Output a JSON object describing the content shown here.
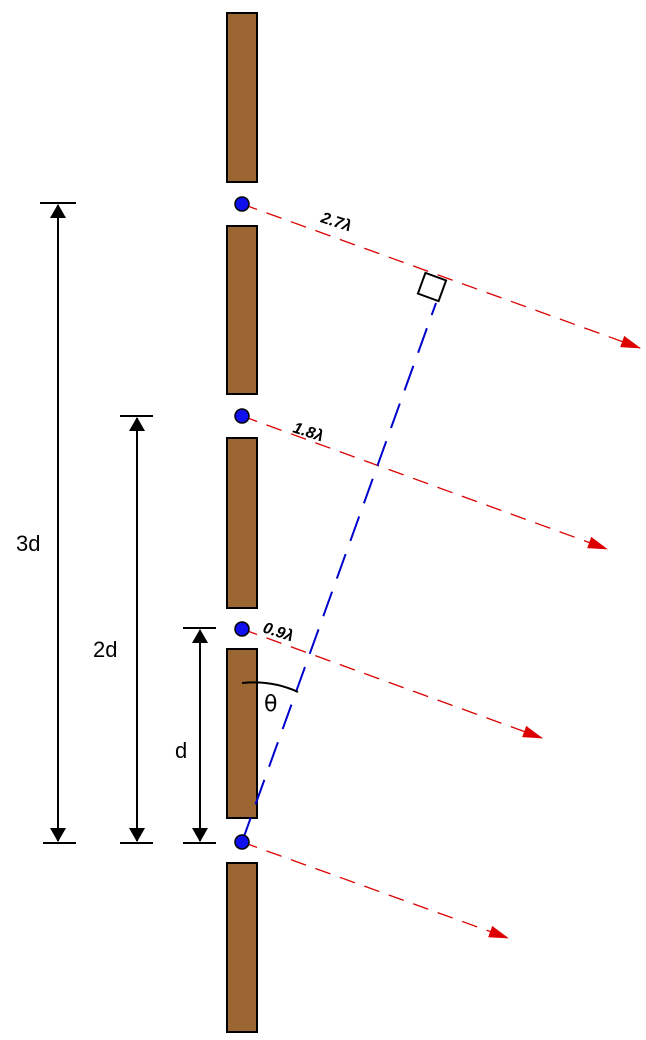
{
  "colors": {
    "barrier": "#9b6632",
    "slit": "#1010ee",
    "ray": "#dd0000",
    "wavefront": "#0000cc",
    "dimension": "#000000"
  },
  "dimensions": {
    "three_d": "3d",
    "two_d": "2d",
    "one_d": "d"
  },
  "path_differences": {
    "top": "2.7λ",
    "second": "1.8λ",
    "third": "0.9λ"
  },
  "angle_label": "θ"
}
